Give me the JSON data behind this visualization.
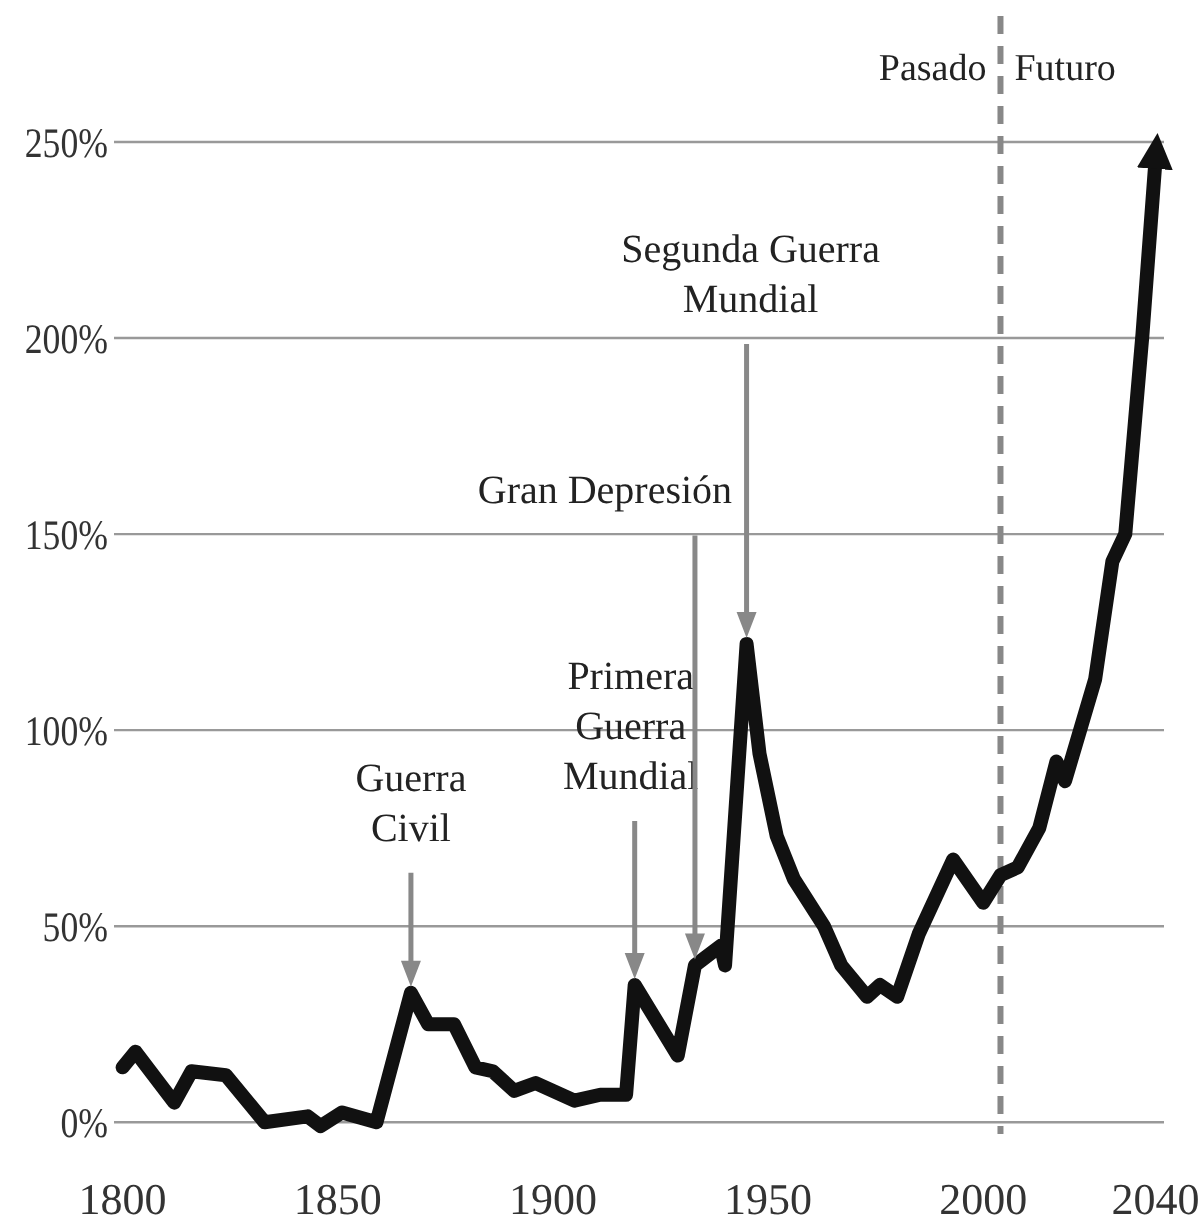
{
  "chart_data": {
    "type": "line",
    "x": [
      1800,
      1803,
      1812,
      1816,
      1824,
      1833,
      1843,
      1846,
      1851,
      1859,
      1867,
      1871,
      1877,
      1882,
      1886,
      1891,
      1896,
      1905,
      1911,
      1917,
      1919,
      1929,
      1933,
      1939,
      1940,
      1945,
      1948,
      1952,
      1956,
      1963,
      1967,
      1973,
      1976,
      1980,
      1985,
      1993,
      2000,
      2004,
      2008,
      2013,
      2017,
      2019,
      2026,
      2030,
      2033,
      2037,
      2040
    ],
    "series": [
      {
        "color": "#111111",
        "values": [
          14,
          18,
          5,
          13,
          12,
          0,
          1.5,
          -1,
          2.5,
          0,
          33,
          25,
          25,
          14,
          13,
          8,
          10,
          5.5,
          7,
          7,
          35,
          17,
          40,
          45,
          40,
          122,
          94,
          73,
          62,
          50,
          40,
          32,
          35,
          32,
          48,
          67,
          56,
          63,
          65,
          75,
          92,
          87,
          113,
          143,
          150,
          201,
          245
        ]
      }
    ],
    "xlim": [
      1798,
      2042
    ],
    "xticks": [
      1800,
      1850,
      1900,
      1950,
      2000,
      2040
    ],
    "ylim": [
      -3,
      250
    ],
    "yticks": [
      {
        "value": 0,
        "label": "0%"
      },
      {
        "value": 50,
        "label": "50%"
      },
      {
        "value": 100,
        "label": "100%"
      },
      {
        "value": 150,
        "label": "150%"
      },
      {
        "value": 200,
        "label": "200%"
      },
      {
        "value": 250,
        "label": "250%"
      }
    ],
    "grid": "y",
    "legend": false,
    "marker": "none",
    "line_style": "solid",
    "ref_lines": [
      {
        "axis": "x",
        "value": 2004,
        "color": "#888888",
        "line_style": "dashed"
      }
    ],
    "annotations": [
      "Guerra\nCivil",
      "Primera\nGuerra\nMundial",
      "Gran Depresión",
      "Segunda Guerra\nMundial",
      "Pasado",
      "Futuro"
    ]
  }
}
